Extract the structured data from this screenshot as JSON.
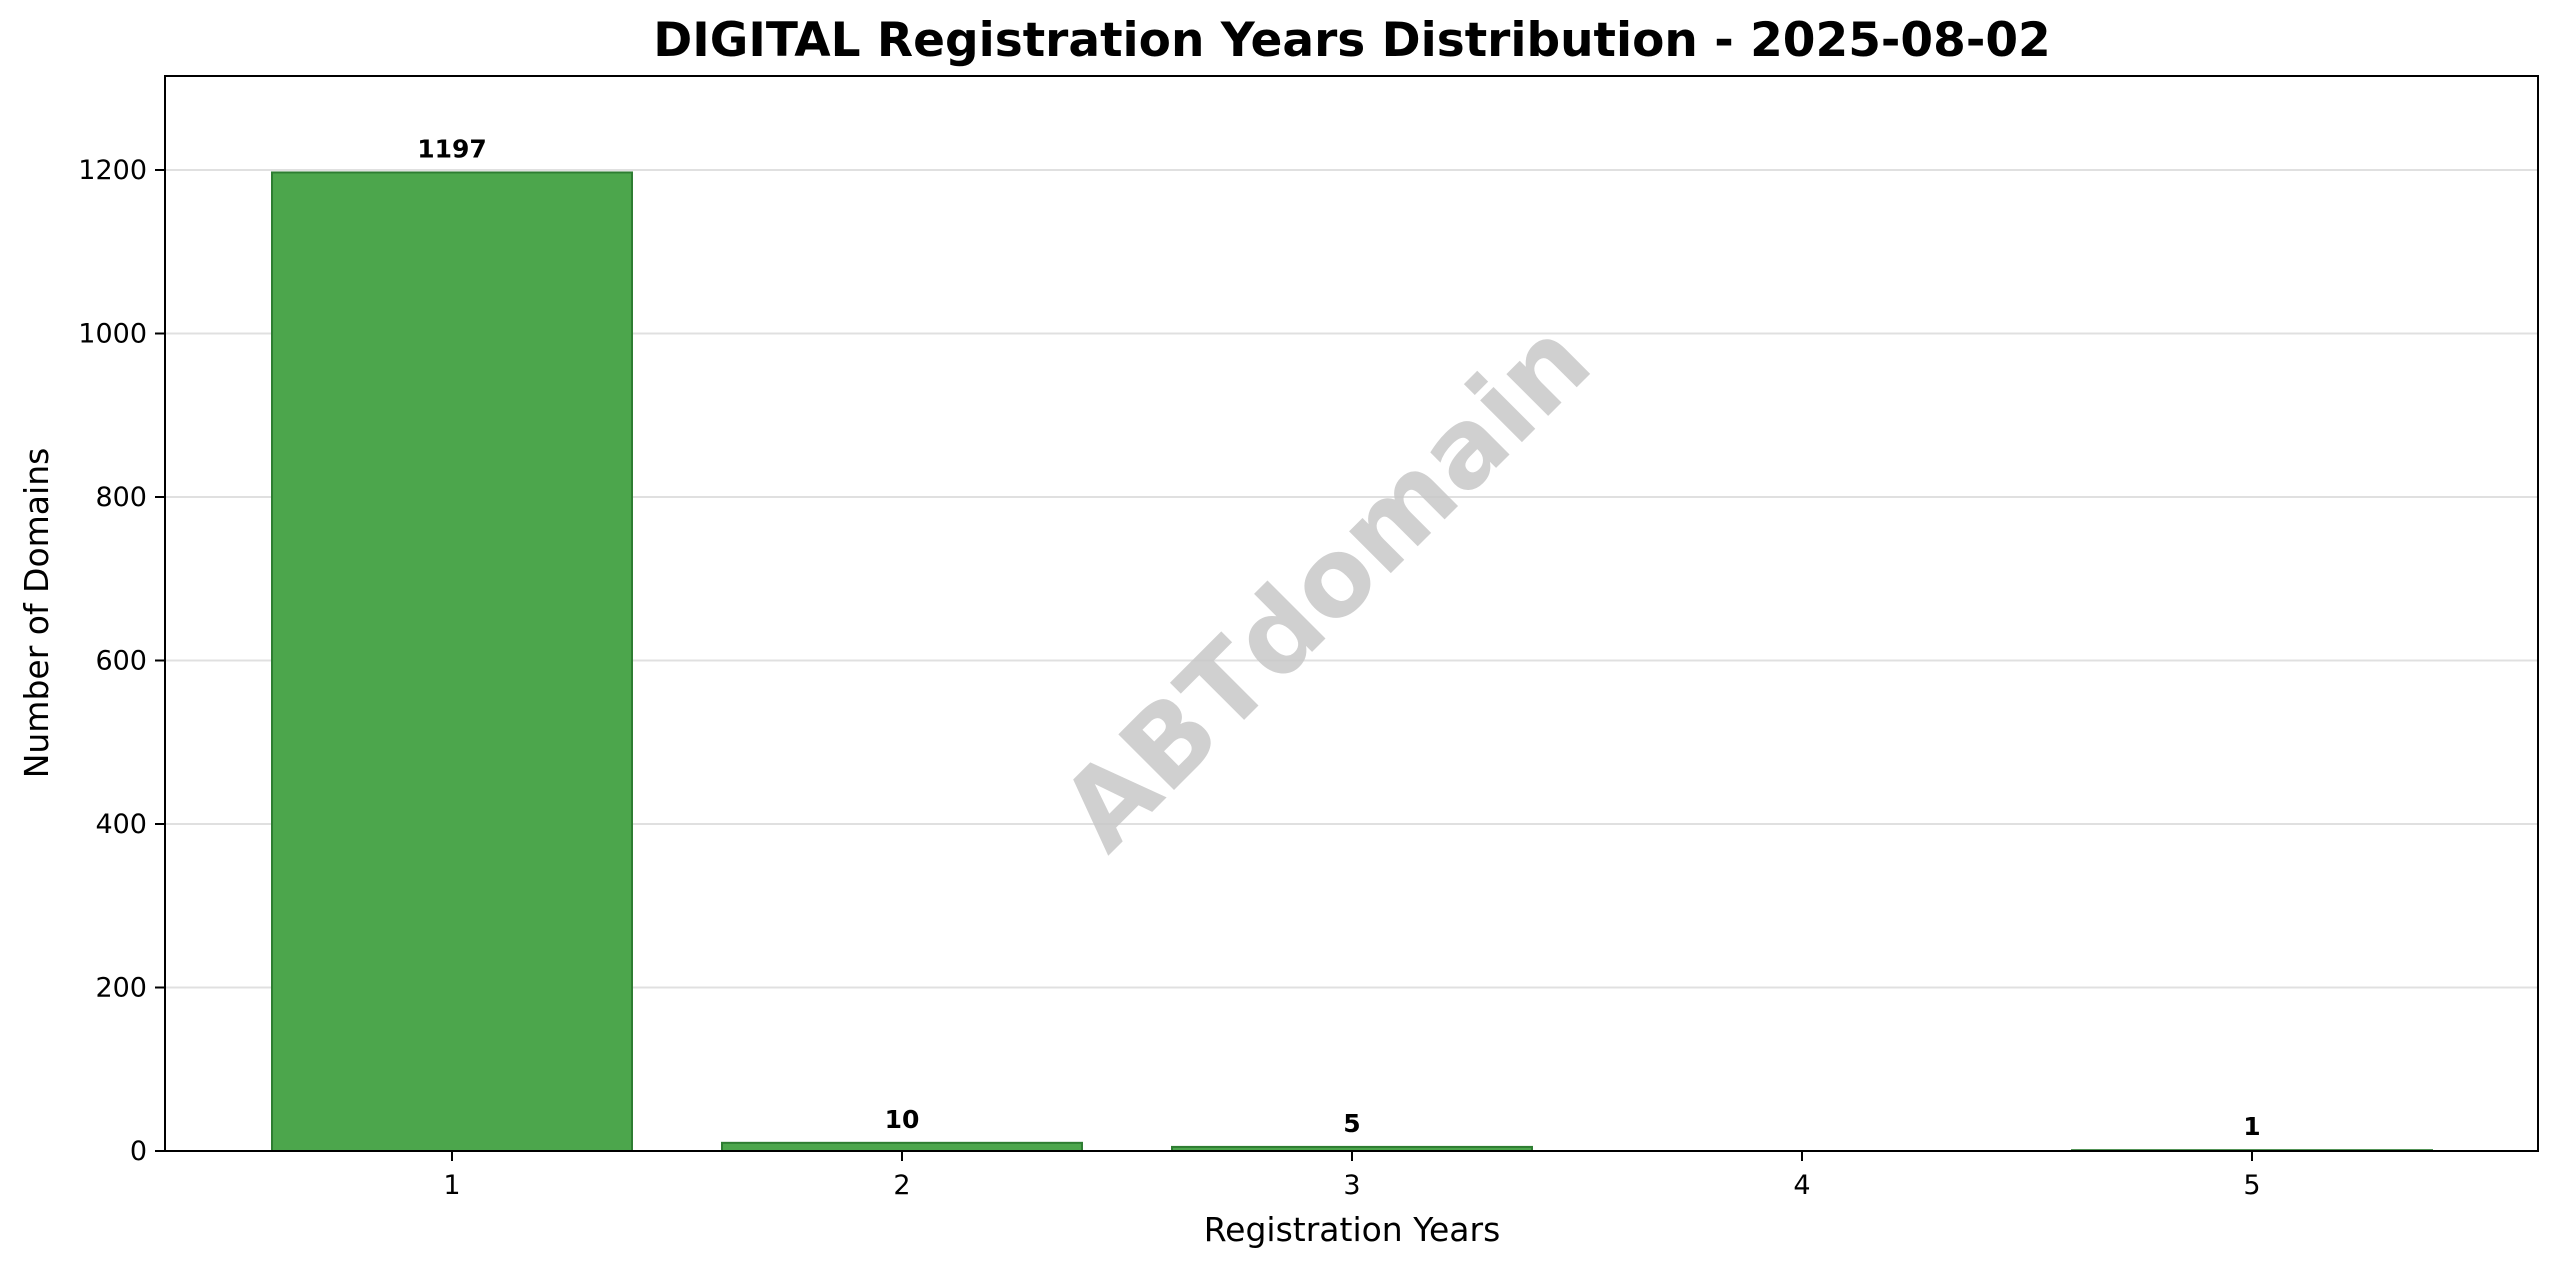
{
  "chart_data": {
    "type": "bar",
    "title": "DIGITAL Registration Years Distribution - 2025-08-02",
    "xlabel": "Registration Years",
    "ylabel": "Number of Domains",
    "categories": [
      "1",
      "2",
      "3",
      "4",
      "5"
    ],
    "values": [
      1197,
      10,
      5,
      0,
      1
    ],
    "data_labels": [
      "1197",
      "10",
      "5",
      "",
      "1"
    ],
    "ylim": [
      0,
      1315
    ],
    "yticks": [
      0,
      200,
      400,
      600,
      800,
      1000,
      1200
    ],
    "grid": "horizontal",
    "bar_color": "#4ca64c",
    "bar_edge_color": "#2e7d32",
    "watermark": "ABTdomain"
  }
}
